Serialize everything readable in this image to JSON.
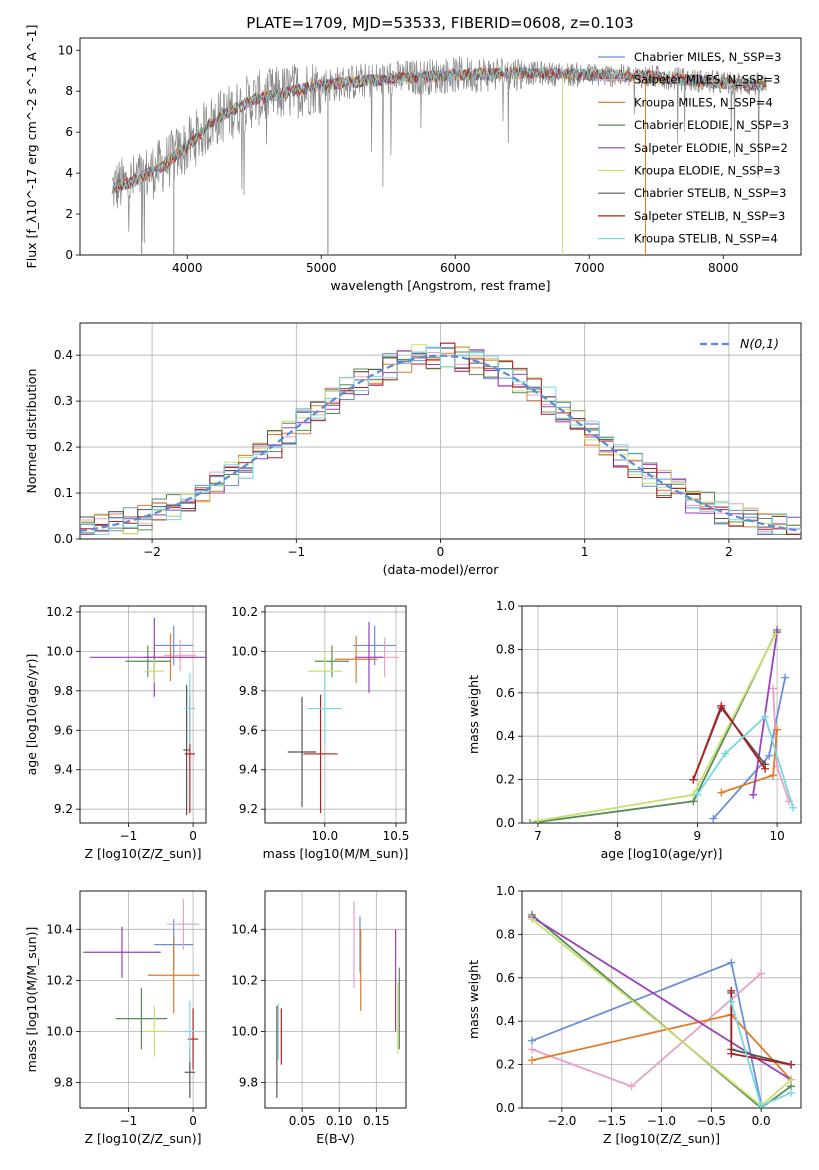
{
  "figure": {
    "title": "PLATE=1709, MJD=53533, FIBERID=0608, z=0.103"
  },
  "series_styles": [
    {
      "name": "Chabrier MILES, N$_{SSP}$=3",
      "color": "#6a8fd8"
    },
    {
      "name": "Salpeter MILES, N$_{SSP}$=3",
      "color": "#e8a0c8"
    },
    {
      "name": "Kroupa MILES, N$_{SSP}$=4",
      "color": "#e07b2a"
    },
    {
      "name": "Chabrier ELODIE, N$_{SSP}$=3",
      "color": "#5a8a5a"
    },
    {
      "name": "Salpeter ELODIE, N$_{SSP}$=2",
      "color": "#9a40b8"
    },
    {
      "name": "Kroupa ELODIE, N$_{SSP}$=3",
      "color": "#c8e070"
    },
    {
      "name": "Chabrier STELIB, N$_{SSP}$=3",
      "color": "#555555"
    },
    {
      "name": "Salpeter STELIB, N$_{SSP}$=3",
      "color": "#b02020"
    },
    {
      "name": "Kroupa STELIB, N$_{SSP}$=4",
      "color": "#78d8e0"
    }
  ],
  "chart_data": [
    {
      "id": "spectrum",
      "type": "line",
      "title": "PLATE=1709, MJD=53533, FIBERID=0608, z=0.103",
      "xlabel": "wavelength [Angstrom, rest frame]",
      "ylabel": "Flux [f_λ10^-17 erg cm^-2 s^-1 A^-1]",
      "xlim": [
        3200,
        8580
      ],
      "ylim": [
        0,
        10.6
      ],
      "xticks": [
        4000,
        5000,
        6000,
        7000,
        8000
      ],
      "yticks": [
        0,
        2,
        4,
        6,
        8,
        10
      ],
      "grid": false,
      "legend_position": "right",
      "legend": [
        "Chabrier MILES, N_SSP=3",
        "Salpeter MILES, N_SSP=3",
        "Kroupa MILES, N_SSP=4",
        "Chabrier ELODIE, N_SSP=3",
        "Salpeter ELODIE, N_SSP=2",
        "Kroupa ELODIE, N_SSP=3",
        "Chabrier STELIB, N_SSP=3",
        "Salpeter STELIB, N_SSP=3",
        "Kroupa STELIB, N_SSP=4"
      ],
      "continuum": {
        "x": [
          3450,
          3600,
          3800,
          4000,
          4200,
          4500,
          5000,
          5500,
          6000,
          6500,
          7000,
          7500,
          8000,
          8300
        ],
        "y": [
          3.3,
          3.6,
          4.3,
          5.3,
          6.6,
          7.6,
          8.3,
          8.6,
          8.8,
          8.9,
          8.8,
          8.7,
          8.4,
          8.3
        ]
      }
    },
    {
      "id": "residuals",
      "type": "histogram",
      "xlabel": "(data-model)/error",
      "ylabel": "Normed distribution",
      "xlim": [
        -2.5,
        2.5
      ],
      "ylim": [
        0,
        0.47
      ],
      "xticks": [
        -2,
        -1,
        0,
        1,
        2
      ],
      "yticks": [
        0.0,
        0.1,
        0.2,
        0.3,
        0.4
      ],
      "grid": true,
      "legend": [
        "N(0,1)"
      ],
      "legend_position": "top-right",
      "bin_width": 0.1
    },
    {
      "id": "age-vs-z",
      "type": "scatter",
      "xlabel": "Z [log10(Z/Z_sun)]",
      "ylabel": "age [log10(age/yr)]",
      "xlim": [
        -1.75,
        0.2
      ],
      "ylim": [
        9.13,
        10.23
      ],
      "xticks": [
        -1,
        0
      ],
      "yticks": [
        9.2,
        9.4,
        9.6,
        9.8,
        10.0,
        10.2
      ],
      "grid": true,
      "points": [
        {
          "series": 0,
          "x": -0.3,
          "y": 10.03,
          "xerr": 0.3,
          "yerr": 0.1
        },
        {
          "series": 1,
          "x": -0.2,
          "y": 9.98,
          "xerr": 0.25,
          "yerr": 0.08
        },
        {
          "series": 2,
          "x": -0.35,
          "y": 9.97,
          "xerr": 0.4,
          "yerr": 0.12
        },
        {
          "series": 3,
          "x": -0.7,
          "y": 9.95,
          "xerr": 0.35,
          "yerr": 0.08
        },
        {
          "series": 4,
          "x": -0.6,
          "y": 9.97,
          "xerr": 1.0,
          "yerr": 0.2
        },
        {
          "series": 5,
          "x": -0.6,
          "y": 9.9,
          "xerr": 0.15,
          "yerr": 0.06
        },
        {
          "series": 6,
          "x": -0.1,
          "y": 9.5,
          "xerr": 0.05,
          "yerr": 0.33
        },
        {
          "series": 7,
          "x": -0.05,
          "y": 9.48,
          "xerr": 0.08,
          "yerr": 0.3
        },
        {
          "series": 8,
          "x": -0.05,
          "y": 9.71,
          "xerr": 0.08,
          "yerr": 0.18
        }
      ]
    },
    {
      "id": "age-vs-mass",
      "type": "scatter",
      "xlabel": "mass [log10(M/M_sun)]",
      "ylabel": "",
      "xlim": [
        9.58,
        10.57
      ],
      "ylim": [
        9.13,
        10.23
      ],
      "xticks": [
        10.0,
        10.5
      ],
      "yticks": [
        9.2,
        9.4,
        9.6,
        9.8,
        10.0,
        10.2
      ],
      "grid": true,
      "points": [
        {
          "series": 0,
          "x": 10.35,
          "y": 10.03,
          "xerr": 0.15,
          "yerr": 0.1
        },
        {
          "series": 1,
          "x": 10.42,
          "y": 9.97,
          "xerr": 0.1,
          "yerr": 0.1
        },
        {
          "series": 2,
          "x": 10.22,
          "y": 9.96,
          "xerr": 0.15,
          "yerr": 0.12
        },
        {
          "series": 3,
          "x": 10.05,
          "y": 9.95,
          "xerr": 0.12,
          "yerr": 0.08
        },
        {
          "series": 4,
          "x": 10.31,
          "y": 9.97,
          "xerr": 0.1,
          "yerr": 0.18
        },
        {
          "series": 5,
          "x": 10.0,
          "y": 9.9,
          "xerr": 0.12,
          "yerr": 0.1
        },
        {
          "series": 6,
          "x": 9.84,
          "y": 9.49,
          "xerr": 0.1,
          "yerr": 0.28
        },
        {
          "series": 7,
          "x": 9.97,
          "y": 9.48,
          "xerr": 0.12,
          "yerr": 0.3
        },
        {
          "series": 8,
          "x": 10.0,
          "y": 9.71,
          "xerr": 0.12,
          "yerr": 0.18
        }
      ]
    },
    {
      "id": "weight-vs-age",
      "type": "line",
      "xlabel": "age  [log10(age/yr)]",
      "ylabel": "mass weight",
      "xlim": [
        6.8,
        10.3
      ],
      "ylim": [
        0,
        1
      ],
      "xticks": [
        7,
        8,
        9,
        10
      ],
      "yticks": [
        0.0,
        0.2,
        0.4,
        0.6,
        0.8,
        1.0
      ],
      "grid": true,
      "series": [
        {
          "style": 0,
          "x": [
            9.2,
            9.9,
            10.1
          ],
          "y": [
            0.02,
            0.31,
            0.67
          ]
        },
        {
          "style": 1,
          "x": [
            9.95,
            10.0,
            10.15
          ],
          "y": [
            0.62,
            0.26,
            0.1
          ]
        },
        {
          "style": 2,
          "x": [
            9.3,
            9.95,
            10.0
          ],
          "y": [
            0.14,
            0.22,
            0.43
          ]
        },
        {
          "style": 3,
          "x": [
            6.9,
            8.95,
            10.0
          ],
          "y": [
            0.0,
            0.1,
            0.89
          ]
        },
        {
          "style": 4,
          "x": [
            9.7,
            10.0
          ],
          "y": [
            0.13,
            0.88
          ]
        },
        {
          "style": 5,
          "x": [
            7.0,
            8.95,
            9.98
          ],
          "y": [
            0.01,
            0.13,
            0.87
          ]
        },
        {
          "style": 6,
          "x": [
            8.95,
            9.3,
            9.85
          ],
          "y": [
            0.2,
            0.53,
            0.27
          ]
        },
        {
          "style": 7,
          "x": [
            8.95,
            9.3,
            9.85
          ],
          "y": [
            0.2,
            0.54,
            0.25
          ]
        },
        {
          "style": 8,
          "x": [
            9.0,
            9.35,
            9.85,
            10.2
          ],
          "y": [
            0.13,
            0.32,
            0.49,
            0.07
          ]
        }
      ]
    },
    {
      "id": "mass-vs-z",
      "type": "scatter",
      "xlabel": "Z [log10(Z/Z_sun)]",
      "ylabel": "mass [log10(M/M_sun)]",
      "xlim": [
        -1.75,
        0.2
      ],
      "ylim": [
        9.7,
        10.55
      ],
      "xticks": [
        -1,
        0
      ],
      "yticks": [
        9.8,
        10.0,
        10.2,
        10.4
      ],
      "grid": true,
      "points": [
        {
          "series": 0,
          "x": -0.3,
          "y": 10.34,
          "xerr": 0.3,
          "yerr": 0.1
        },
        {
          "series": 1,
          "x": -0.15,
          "y": 10.42,
          "xerr": 0.25,
          "yerr": 0.1
        },
        {
          "series": 2,
          "x": -0.3,
          "y": 10.22,
          "xerr": 0.4,
          "yerr": 0.15
        },
        {
          "series": 3,
          "x": -0.8,
          "y": 10.05,
          "xerr": 0.4,
          "yerr": 0.12
        },
        {
          "series": 4,
          "x": -1.1,
          "y": 10.31,
          "xerr": 0.6,
          "yerr": 0.1
        },
        {
          "series": 5,
          "x": -0.6,
          "y": 10.0,
          "xerr": 0.15,
          "yerr": 0.1
        },
        {
          "series": 6,
          "x": -0.05,
          "y": 9.84,
          "xerr": 0.08,
          "yerr": 0.1
        },
        {
          "series": 7,
          "x": 0.0,
          "y": 9.97,
          "xerr": 0.08,
          "yerr": 0.12
        },
        {
          "series": 8,
          "x": -0.05,
          "y": 10.0,
          "xerr": 0.1,
          "yerr": 0.12
        }
      ]
    },
    {
      "id": "mass-vs-ebv",
      "type": "scatter",
      "xlabel": "E(B-V)",
      "ylabel": "",
      "xlim": [
        0.0,
        0.19
      ],
      "ylim": [
        9.7,
        10.55
      ],
      "xticks": [
        0.05,
        0.1,
        0.15
      ],
      "yticks": [
        9.8,
        10.0,
        10.2,
        10.4
      ],
      "grid": true,
      "points": [
        {
          "series": 0,
          "x": 0.128,
          "y": 10.34,
          "xerr": 0.0,
          "yerr": 0.11
        },
        {
          "series": 1,
          "x": 0.12,
          "y": 10.34,
          "xerr": 0.0,
          "yerr": 0.17
        },
        {
          "series": 2,
          "x": 0.129,
          "y": 10.24,
          "xerr": 0.0,
          "yerr": 0.16
        },
        {
          "series": 3,
          "x": 0.181,
          "y": 10.09,
          "xerr": 0.0,
          "yerr": 0.16
        },
        {
          "series": 4,
          "x": 0.176,
          "y": 10.2,
          "xerr": 0.0,
          "yerr": 0.2
        },
        {
          "series": 5,
          "x": 0.179,
          "y": 10.05,
          "xerr": 0.0,
          "yerr": 0.14
        },
        {
          "series": 6,
          "x": 0.016,
          "y": 9.92,
          "xerr": 0.0,
          "yerr": 0.18
        },
        {
          "series": 7,
          "x": 0.022,
          "y": 9.98,
          "xerr": 0.0,
          "yerr": 0.11
        },
        {
          "series": 8,
          "x": 0.018,
          "y": 10.0,
          "xerr": 0.0,
          "yerr": 0.11
        }
      ]
    },
    {
      "id": "weight-vs-z",
      "type": "line",
      "xlabel": "Z [log10(Z/Z_sun)]",
      "ylabel": "mass weight",
      "xlim": [
        -2.4,
        0.4
      ],
      "ylim": [
        0,
        1
      ],
      "xticks": [
        -2.0,
        -1.5,
        -1.0,
        -0.5,
        0.0
      ],
      "yticks": [
        0.0,
        0.2,
        0.4,
        0.6,
        0.8,
        1.0
      ],
      "grid": true,
      "series": [
        {
          "style": 0,
          "x": [
            -2.3,
            -0.3,
            0.0
          ],
          "y": [
            0.31,
            0.67,
            0.02
          ]
        },
        {
          "style": 1,
          "x": [
            -2.3,
            -1.3,
            0.0
          ],
          "y": [
            0.27,
            0.1,
            0.62
          ]
        },
        {
          "style": 2,
          "x": [
            -2.3,
            -0.3,
            0.3
          ],
          "y": [
            0.22,
            0.43,
            0.13
          ]
        },
        {
          "style": 3,
          "x": [
            -2.3,
            0.0,
            0.3
          ],
          "y": [
            0.89,
            0.0,
            0.1
          ]
        },
        {
          "style": 4,
          "x": [
            -2.3,
            0.3
          ],
          "y": [
            0.88,
            0.13
          ]
        },
        {
          "style": 5,
          "x": [
            -2.3,
            0.0,
            0.3
          ],
          "y": [
            0.87,
            0.01,
            0.13
          ]
        },
        {
          "style": 6,
          "x": [
            -0.3,
            -0.3,
            0.3
          ],
          "y": [
            0.53,
            0.27,
            0.2
          ]
        },
        {
          "style": 7,
          "x": [
            -0.3,
            -0.3,
            0.3
          ],
          "y": [
            0.54,
            0.25,
            0.2
          ]
        },
        {
          "style": 8,
          "x": [
            -0.3,
            0.0,
            0.3
          ],
          "y": [
            0.49,
            0.01,
            0.07
          ]
        }
      ]
    }
  ]
}
